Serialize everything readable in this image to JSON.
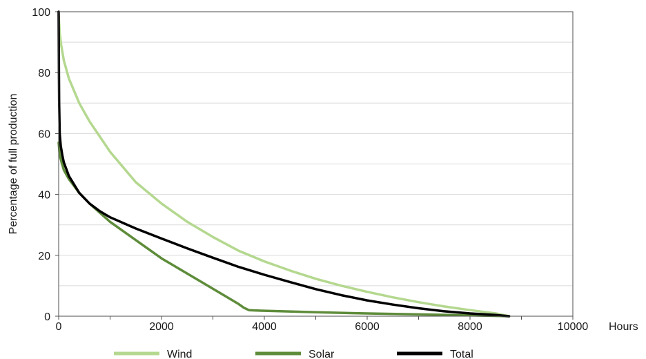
{
  "chart_data": {
    "type": "line",
    "title": "",
    "xlabel": "Hours",
    "ylabel": "Percentage of full production",
    "xlim": [
      0,
      10000
    ],
    "ylim": [
      0,
      100
    ],
    "xticks": [
      "0",
      "2000",
      "4000",
      "6000",
      "8000",
      "10000"
    ],
    "yticks": [
      "0",
      "20",
      "40",
      "60",
      "80",
      "100"
    ],
    "grid": "horizontal",
    "legend_position": "bottom",
    "series": [
      {
        "name": "Wind",
        "color": "#b4d88f",
        "x": [
          0,
          20,
          50,
          100,
          200,
          400,
          600,
          800,
          1000,
          1500,
          2000,
          2500,
          3000,
          3500,
          4000,
          4500,
          5000,
          5500,
          6000,
          6500,
          7000,
          7500,
          8000,
          8500,
          8760
        ],
        "y": [
          99,
          93,
          89,
          84,
          78,
          70,
          64,
          59,
          54,
          44,
          37,
          31,
          26,
          21.5,
          18,
          15,
          12.3,
          10,
          8,
          6.2,
          4.6,
          3.2,
          2,
          0.9,
          0
        ]
      },
      {
        "name": "Solar",
        "color": "#5e8c3a",
        "x": [
          0,
          20,
          50,
          100,
          200,
          400,
          600,
          800,
          1000,
          1500,
          2000,
          2500,
          3000,
          3500,
          3600,
          3700,
          3800,
          4000,
          5000,
          6000,
          7000,
          8000,
          8760
        ],
        "y": [
          57,
          53,
          51,
          48,
          45,
          40.5,
          37,
          34,
          31,
          25,
          19,
          14,
          9,
          4,
          2.8,
          2,
          1.9,
          1.8,
          1.3,
          0.9,
          0.6,
          0.3,
          0
        ]
      },
      {
        "name": "Total",
        "color": "#000000",
        "x": [
          0,
          5,
          10,
          20,
          40,
          70,
          100,
          200,
          400,
          600,
          800,
          1000,
          1500,
          2000,
          2500,
          3000,
          3500,
          4000,
          4500,
          5000,
          5500,
          6000,
          6500,
          7000,
          7500,
          8000,
          8500,
          8760
        ],
        "y": [
          100,
          80,
          70,
          60,
          56,
          53,
          50.5,
          46,
          40.5,
          37,
          34.5,
          32.5,
          28.8,
          25.5,
          22.3,
          19.2,
          16.2,
          13.6,
          11.2,
          8.9,
          6.9,
          5.2,
          3.8,
          2.6,
          1.6,
          0.9,
          0.4,
          0
        ]
      }
    ]
  }
}
